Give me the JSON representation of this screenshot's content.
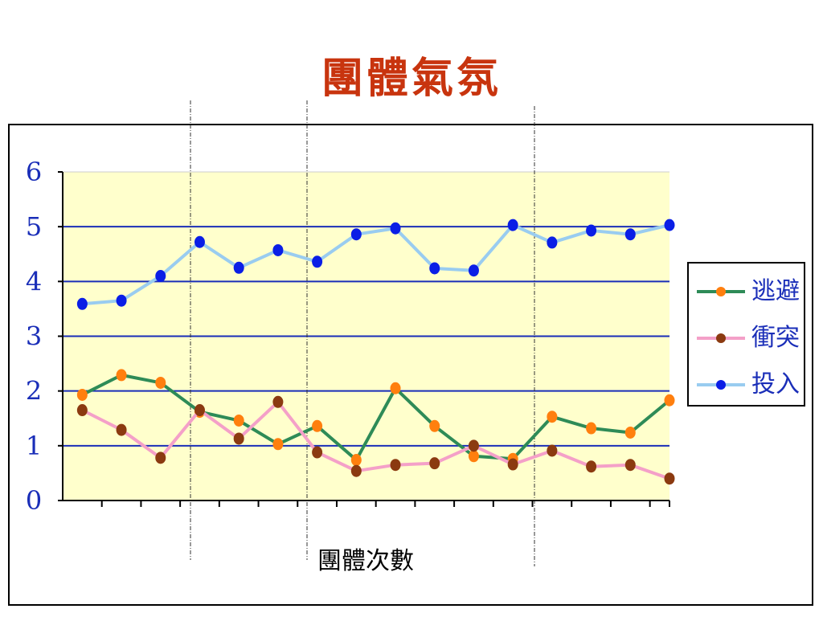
{
  "chart_data": {
    "type": "line",
    "title": "團體氣氛",
    "xlabel": "團體次數",
    "ylabel": "",
    "ylim": [
      0,
      6
    ],
    "yticks": [
      "0",
      "1",
      "2",
      "3",
      "4",
      "5",
      "6"
    ],
    "x": [
      1,
      2,
      3,
      4,
      5,
      6,
      7,
      8,
      9,
      10,
      11,
      12,
      13,
      14,
      15,
      16
    ],
    "grid": true,
    "legend": "right",
    "plot_background": "#ffffcc",
    "gridline_color": "#1a2eb8",
    "series": [
      {
        "name": "逃避",
        "line_color": "#2e8b57",
        "marker_color": "#ff7f0e",
        "values": [
          1.93,
          2.29,
          2.15,
          1.62,
          1.46,
          1.03,
          1.36,
          0.74,
          2.05,
          1.36,
          0.81,
          0.76,
          1.53,
          1.32,
          1.24,
          1.83
        ]
      },
      {
        "name": "衝突",
        "line_color": "#f4a0c8",
        "marker_color": "#8b3a10",
        "values": [
          1.65,
          1.29,
          0.78,
          1.65,
          1.13,
          1.8,
          0.88,
          0.54,
          0.65,
          0.68,
          1.0,
          0.66,
          0.91,
          0.62,
          0.65,
          0.4
        ]
      },
      {
        "name": "投入",
        "line_color": "#99ccf0",
        "marker_color": "#0a1ee6",
        "values": [
          3.59,
          3.65,
          4.1,
          4.72,
          4.25,
          4.57,
          4.36,
          4.86,
          4.97,
          4.24,
          4.2,
          5.03,
          4.71,
          4.93,
          4.86,
          5.03
        ]
      }
    ]
  }
}
